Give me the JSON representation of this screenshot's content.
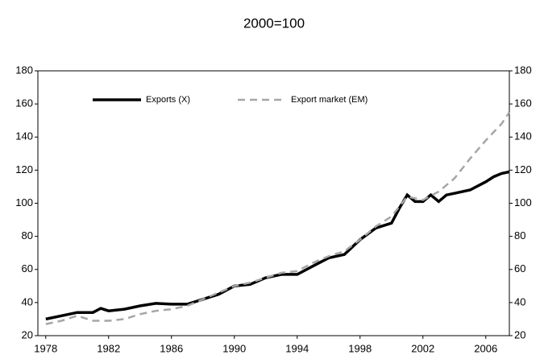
{
  "chart_data": {
    "type": "line",
    "title": "2000=100",
    "xlim": [
      1977.5,
      2007.5
    ],
    "xticks": [
      1978,
      1982,
      1986,
      1990,
      1994,
      1998,
      2002,
      2006
    ],
    "ylim": [
      20,
      180
    ],
    "yticks": [
      20,
      40,
      60,
      80,
      100,
      120,
      140,
      160,
      180
    ],
    "y2lim": [
      20,
      180
    ],
    "y2ticks": [
      20,
      40,
      60,
      80,
      100,
      120,
      140,
      160,
      180
    ],
    "legend": "top",
    "series": [
      {
        "name": "Exports (X)",
        "color": "#000000",
        "style": "solid",
        "x": [
          1978,
          1979,
          1980,
          1981,
          1981.5,
          1982,
          1983,
          1984,
          1985,
          1986,
          1987,
          1988,
          1989,
          1990,
          1991,
          1992,
          1993,
          1994,
          1995,
          1996,
          1997,
          1998,
          1999,
          2000,
          2000.5,
          2001,
          2001.5,
          2002,
          2002.5,
          2003,
          2003.5,
          2004,
          2005,
          2006,
          2006.5,
          2007,
          2007.5
        ],
        "values": [
          30,
          32,
          34,
          34,
          36.5,
          35,
          36,
          38,
          39.5,
          39,
          39,
          42,
          45,
          50,
          51,
          55,
          57,
          57,
          62,
          67,
          69,
          78,
          85,
          88,
          97,
          105,
          101,
          101,
          105,
          101,
          105,
          106,
          108,
          113,
          116,
          118,
          119
        ]
      },
      {
        "name": "Export market (EM)",
        "color": "#a6a6a6",
        "style": "dashed",
        "x": [
          1978,
          1979,
          1980,
          1981,
          1982,
          1983,
          1984,
          1985,
          1986,
          1987,
          1988,
          1989,
          1990,
          1991,
          1992,
          1993,
          1994,
          1995,
          1996,
          1997,
          1998,
          1999,
          2000,
          2001,
          2002,
          2003,
          2004,
          2005,
          2006,
          2007,
          2007.5
        ],
        "values": [
          27,
          29,
          32,
          29,
          29,
          30,
          33,
          35,
          36,
          38,
          42,
          46,
          50,
          52,
          55,
          58,
          59,
          64,
          68,
          71,
          78,
          86,
          92,
          104,
          102,
          107,
          115,
          127,
          138,
          148,
          155
        ]
      }
    ]
  }
}
